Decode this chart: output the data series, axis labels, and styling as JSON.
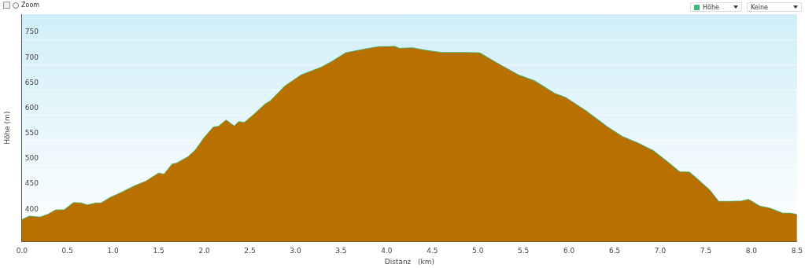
{
  "chart_data": {
    "type": "area",
    "xlabel": "Distanz   (km)",
    "ylabel": "Höhe (m)",
    "annotations": [
      "Zoom",
      "Keine"
    ],
    "legend": "top right",
    "grid": "y",
    "series": [
      {
        "color": "#b87000",
        "x": [
          0,
          0.085,
          0.2,
          0.28,
          0.37,
          0.47,
          0.57,
          0.65,
          0.72,
          0.81,
          0.87,
          0.97,
          1.08,
          1.25,
          1.36,
          1.5,
          1.56,
          1.65,
          1.7,
          1.82,
          1.9,
          2.0,
          2.1,
          2.16,
          2.24,
          2.33,
          2.38,
          2.44,
          2.55,
          2.67,
          2.72,
          2.89,
          3.06,
          3.29,
          3.4,
          3.55,
          3.8,
          3.91,
          4.09,
          4.14,
          4.28,
          4.43,
          4.6,
          4.88,
          5.02,
          5.22,
          5.45,
          5.62,
          5.84,
          5.96,
          6.18,
          6.41,
          6.58,
          6.75,
          6.92,
          7.09,
          7.21,
          7.32,
          7.43,
          7.55,
          7.64,
          7.77,
          7.89,
          7.97,
          8.09,
          8.2,
          8.34,
          8.43,
          8.5
        ],
        "values": [
          393,
          400,
          398,
          403,
          412,
          413,
          427,
          426,
          422,
          426,
          426,
          437,
          446,
          461,
          469,
          485,
          483,
          503,
          505,
          517,
          530,
          555,
          576,
          578,
          590,
          578,
          587,
          585,
          602,
          622,
          627,
          658,
          679,
          695,
          706,
          723,
          732,
          735,
          736,
          732,
          733,
          728,
          724,
          724,
          723,
          702,
          679,
          668,
          643,
          635,
          609,
          578,
          558,
          545,
          530,
          506,
          488,
          487,
          470,
          450,
          429,
          429,
          430,
          433,
          420,
          416,
          406,
          406,
          403
        ]
      },
      {
        "type": "line",
        "name": "Höhe",
        "color": "#3cb878",
        "x": [
          0,
          0.085,
          0.2,
          0.28,
          0.37,
          0.47,
          0.57,
          0.65,
          0.72,
          0.81,
          0.87,
          0.97,
          1.08,
          1.25,
          1.36,
          1.5,
          1.56,
          1.65,
          1.7,
          1.82,
          1.9,
          2.0,
          2.1,
          2.16,
          2.24,
          2.33,
          2.38,
          2.44,
          2.55,
          2.67,
          2.72,
          2.89,
          3.06,
          3.29,
          3.4,
          3.55,
          3.8,
          3.91,
          4.09,
          4.14,
          4.28,
          4.43,
          4.6,
          4.88,
          5.02,
          5.22,
          5.45,
          5.62,
          5.84,
          5.96,
          6.18,
          6.41,
          6.58,
          6.75,
          6.92,
          7.09,
          7.21,
          7.32,
          7.43,
          7.55,
          7.64,
          7.77,
          7.89,
          7.97,
          8.09,
          8.2,
          8.34,
          8.43,
          8.5
        ],
        "values": [
          393,
          400,
          398,
          403,
          412,
          413,
          427,
          426,
          422,
          426,
          426,
          437,
          446,
          461,
          469,
          485,
          483,
          503,
          505,
          517,
          530,
          555,
          576,
          578,
          590,
          578,
          587,
          585,
          602,
          622,
          627,
          658,
          679,
          695,
          706,
          723,
          732,
          735,
          736,
          732,
          733,
          728,
          724,
          724,
          723,
          702,
          679,
          668,
          643,
          635,
          609,
          578,
          558,
          545,
          530,
          506,
          488,
          487,
          470,
          450,
          429,
          429,
          430,
          433,
          420,
          416,
          406,
          406,
          403
        ]
      }
    ],
    "xlim": [
      0,
      8.5
    ],
    "xticks": [
      {
        "value": 0,
        "label": "0.0"
      },
      {
        "value": 0.5,
        "label": "0.5"
      },
      {
        "value": 1,
        "label": "1.0"
      },
      {
        "value": 1.5,
        "label": "1.5"
      },
      {
        "value": 2,
        "label": "2.0"
      },
      {
        "value": 2.5,
        "label": "2.5"
      },
      {
        "value": 3,
        "label": "3.0"
      },
      {
        "value": 3.5,
        "label": "3.5"
      },
      {
        "value": 4,
        "label": "4.0"
      },
      {
        "value": 4.5,
        "label": "4.5"
      },
      {
        "value": 5,
        "label": "5.0"
      },
      {
        "value": 5.5,
        "label": "5.5"
      },
      {
        "value": 6,
        "label": "6.0"
      },
      {
        "value": 6.5,
        "label": "6.5"
      },
      {
        "value": 7,
        "label": "7.0"
      },
      {
        "value": 7.5,
        "label": "7.5"
      },
      {
        "value": 8,
        "label": "8.0"
      },
      {
        "value": 8.5,
        "label": "8.5"
      }
    ],
    "ylim": [
      350,
      800
    ],
    "yticks": [
      400,
      450,
      500,
      550,
      600,
      650,
      700,
      750
    ]
  }
}
